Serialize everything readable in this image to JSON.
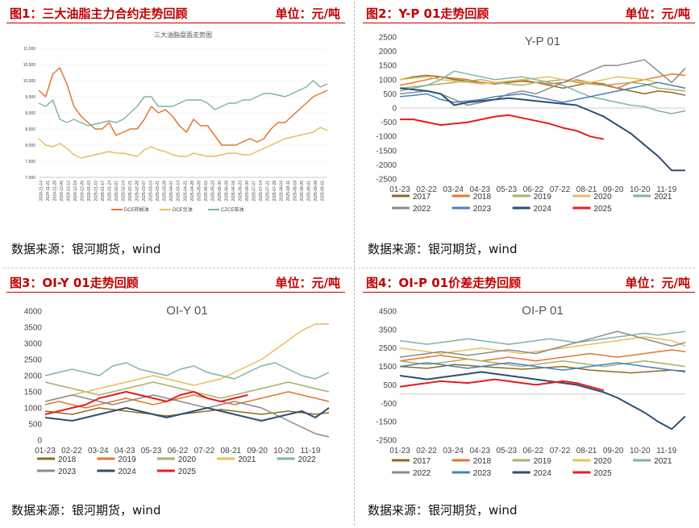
{
  "panels": [
    {
      "header": "图1：三大油脂主力合约走势回顾",
      "unit": "单位：元/吨",
      "source": "数据来源：银河期货，wind"
    },
    {
      "header": "图2：Y-P 01走势回顾",
      "unit": "单位：元/吨",
      "source": "数据来源：银河期货，wind"
    },
    {
      "header": "图3：OI-Y 01走势回顾",
      "unit": "单位：元/吨",
      "source": "数据来源：银河期货，wind"
    },
    {
      "header": "图4：OI-P 01价差走势回顾",
      "unit": "单位：元/吨",
      "source": "数据来源：银河期货，wind"
    }
  ],
  "chart_data": [
    {
      "type": "line",
      "title": "三大油脂盘面走势图",
      "ylim": [
        7000,
        11000
      ],
      "yticks": [
        7000,
        7500,
        8000,
        8500,
        9000,
        9500,
        10000,
        10500,
        11000
      ],
      "xticks": [
        "2024-11-14",
        "2024-11-21",
        "2024-11-28",
        "2024-12-05",
        "2024-12-12",
        "2024-12-19",
        "2024-12-26",
        "2025-01-03",
        "2025-01-10",
        "2025-01-17",
        "2025-01-24",
        "2025-02-07",
        "2025-02-14",
        "2025-02-21",
        "2025-02-28",
        "2025-03-07",
        "2025-03-14",
        "2025-03-21",
        "2025-03-28",
        "2025-04-07",
        "2025-04-14",
        "2025-04-21",
        "2025-04-28",
        "2025-05-09",
        "2025-05-16",
        "2025-05-23",
        "2025-05-30",
        "2025-06-09",
        "2025-06-16",
        "2025-06-23",
        "2025-06-30",
        "2025-07-07",
        "2025-07-14",
        "2025-07-21",
        "2025-07-28",
        "2025-08-04",
        "2025-08-11",
        "2025-08-18",
        "2025-08-25",
        "2025-09-01",
        "2025-09-08",
        "2025-09-15"
      ],
      "legend_position": "bottom",
      "series": [
        {
          "name": "DCE棕榈油",
          "color": "#e3762f",
          "values": [
            9700,
            9500,
            10200,
            10400,
            9900,
            9200,
            8900,
            8700,
            8500,
            8500,
            8700,
            8300,
            8400,
            8500,
            8500,
            8800,
            9200,
            9000,
            9100,
            8900,
            8600,
            8400,
            8800,
            8600,
            8600,
            8300,
            8000,
            8000,
            8000,
            8100,
            8200,
            8100,
            8200,
            8500,
            8700,
            8700,
            8900,
            9100,
            9300,
            9500,
            9600,
            9700
          ]
        },
        {
          "name": "DCE豆油",
          "color": "#e6bf5c",
          "values": [
            8200,
            8000,
            7950,
            8050,
            7900,
            7700,
            7600,
            7650,
            7700,
            7750,
            7800,
            7750,
            7750,
            7700,
            7650,
            7850,
            7950,
            7850,
            7800,
            7700,
            7650,
            7650,
            7750,
            7700,
            7650,
            7650,
            7700,
            7750,
            7750,
            7700,
            7700,
            7800,
            7900,
            8000,
            8100,
            8200,
            8250,
            8300,
            8350,
            8400,
            8550,
            8450
          ]
        },
        {
          "name": "CZCE菜油",
          "color": "#7eb4a7",
          "values": [
            9300,
            9200,
            9400,
            8800,
            8700,
            8800,
            8700,
            8600,
            8650,
            8700,
            8750,
            8700,
            8800,
            9000,
            9200,
            9500,
            9500,
            9200,
            9200,
            9200,
            9300,
            9400,
            9400,
            9400,
            9300,
            9100,
            9200,
            9300,
            9300,
            9400,
            9400,
            9500,
            9600,
            9600,
            9550,
            9500,
            9600,
            9700,
            9800,
            10000,
            9800,
            9900
          ]
        }
      ]
    },
    {
      "type": "line",
      "title": "Y-P 01",
      "ylim": [
        -2500,
        2500
      ],
      "yticks": [
        -2500,
        -2000,
        -1500,
        -1000,
        -500,
        0,
        500,
        1000,
        1500,
        2000,
        2500
      ],
      "xticks": [
        "01-23",
        "02-22",
        "03-24",
        "04-23",
        "05-23",
        "06-22",
        "07-22",
        "08-21",
        "09-20",
        "10-20",
        "11-19"
      ],
      "legend_position": "bottom",
      "series": [
        {
          "name": "2017",
          "color": "#8b6d22",
          "values": [
            1000,
            1100,
            1150,
            1100,
            1000,
            950,
            900,
            850,
            900,
            950,
            900,
            800,
            700,
            800,
            900,
            850,
            700,
            600,
            500,
            600,
            550,
            450
          ]
        },
        {
          "name": "2018",
          "color": "#e3762f",
          "values": [
            800,
            900,
            1000,
            1100,
            1050,
            1000,
            900,
            850,
            950,
            1000,
            900,
            850,
            900,
            1000,
            900,
            800,
            700,
            900,
            1000,
            1100,
            1200,
            1150
          ]
        },
        {
          "name": "2019",
          "color": "#a9b06a",
          "values": [
            700,
            750,
            800,
            850,
            900,
            950,
            1000,
            900,
            850,
            800,
            900,
            950,
            1000,
            900,
            850,
            800,
            850,
            900,
            850,
            700,
            650,
            600
          ]
        },
        {
          "name": "2020",
          "color": "#e6bf5c",
          "values": [
            1000,
            1050,
            1100,
            1000,
            950,
            900,
            850,
            900,
            950,
            1000,
            1050,
            1100,
            1000,
            950,
            900,
            1000,
            1100,
            1050,
            1000,
            900,
            800,
            700
          ]
        },
        {
          "name": "2021",
          "color": "#7eb4a7",
          "values": [
            600,
            700,
            800,
            1000,
            1300,
            1200,
            1100,
            1000,
            1050,
            1100,
            1000,
            900,
            800,
            600,
            400,
            300,
            200,
            100,
            50,
            -100,
            -200,
            -100
          ]
        },
        {
          "name": "2022",
          "color": "#8e8a89",
          "values": [
            500,
            550,
            600,
            500,
            300,
            100,
            200,
            300,
            500,
            600,
            500,
            700,
            900,
            1100,
            1300,
            1500,
            1500,
            1600,
            1700,
            1300,
            900,
            1400
          ]
        },
        {
          "name": "2023",
          "color": "#4a80c0",
          "values": [
            400,
            450,
            500,
            300,
            200,
            250,
            300,
            400,
            450,
            500,
            400,
            300,
            200,
            300,
            400,
            500,
            600,
            700,
            800,
            900,
            800,
            700
          ]
        },
        {
          "name": "2024",
          "color": "#2f4f6f",
          "values": [
            700,
            650,
            600,
            500,
            100,
            200,
            250,
            300,
            350,
            300,
            250,
            200,
            150,
            100,
            -100,
            -300,
            -600,
            -900,
            -1300,
            -1700,
            -2200,
            -2200
          ]
        },
        {
          "name": "2025",
          "color": "#e81c1c",
          "values": [
            -400,
            -400,
            -500,
            -600,
            -550,
            -500,
            -400,
            -300,
            -250,
            -350,
            -450,
            -550,
            -700,
            -800,
            -1000,
            -1100
          ]
        }
      ]
    },
    {
      "type": "line",
      "title": "OI-Y 01",
      "ylim": [
        0,
        4000
      ],
      "yticks": [
        0,
        500,
        1000,
        1500,
        2000,
        2500,
        3000,
        3500,
        4000
      ],
      "xticks": [
        "01-23",
        "02-22",
        "03-24",
        "04-23",
        "05-23",
        "06-22",
        "07-22",
        "08-21",
        "09-20",
        "10-20",
        "11-19"
      ],
      "legend_position": "bottom",
      "series": [
        {
          "name": "2018",
          "color": "#8b6d22",
          "values": [
            900,
            850,
            800,
            900,
            1000,
            950,
            900,
            850,
            800,
            750,
            800,
            850,
            900,
            950,
            900,
            850,
            800,
            850,
            900,
            850,
            800,
            850
          ]
        },
        {
          "name": "2019",
          "color": "#e3762f",
          "values": [
            1100,
            1200,
            1100,
            1000,
            1100,
            1200,
            1300,
            1200,
            1100,
            1200,
            1300,
            1400,
            1300,
            1200,
            1100,
            1200,
            1300,
            1400,
            1500,
            1400,
            1300,
            1200
          ]
        },
        {
          "name": "2020",
          "color": "#a9b06a",
          "values": [
            1800,
            1700,
            1600,
            1500,
            1400,
            1500,
            1600,
            1700,
            1800,
            1700,
            1600,
            1500,
            1400,
            1300,
            1400,
            1500,
            1600,
            1700,
            1800,
            1700,
            1600,
            1500
          ]
        },
        {
          "name": "2021",
          "color": "#e6bf5c",
          "values": [
            1200,
            1300,
            1400,
            1500,
            1600,
            1700,
            1800,
            1900,
            2000,
            1900,
            1800,
            1700,
            1800,
            1900,
            2100,
            2300,
            2500,
            2800,
            3100,
            3400,
            3600,
            3600
          ]
        },
        {
          "name": "2022",
          "color": "#7eb4a7",
          "values": [
            2000,
            2100,
            2200,
            2100,
            2000,
            2300,
            2400,
            2200,
            2100,
            2000,
            2200,
            2300,
            2100,
            2000,
            1900,
            2100,
            2300,
            2400,
            2200,
            2000,
            1900,
            2100
          ]
        },
        {
          "name": "2023",
          "color": "#8e8a89",
          "values": [
            1200,
            1300,
            1400,
            1300,
            1200,
            1100,
            1200,
            1300,
            1400,
            1300,
            1200,
            1100,
            1000,
            1100,
            1200,
            1100,
            1000,
            800,
            600,
            400,
            200,
            100
          ]
        },
        {
          "name": "2024",
          "color": "#2f4f6f",
          "values": [
            700,
            650,
            600,
            700,
            800,
            900,
            1000,
            900,
            800,
            700,
            800,
            900,
            1000,
            900,
            800,
            700,
            600,
            700,
            800,
            900,
            700,
            1000
          ]
        },
        {
          "name": "2025",
          "color": "#e81c1c",
          "values": [
            800,
            900,
            1000,
            1100,
            1300,
            1400,
            1500,
            1400,
            1300,
            1200,
            1400,
            1500,
            1300,
            1200,
            1300,
            1400
          ]
        }
      ]
    },
    {
      "type": "line",
      "title": "OI-P 01",
      "ylim": [
        -2500,
        4500
      ],
      "yticks": [
        -2500,
        -1500,
        -500,
        500,
        1500,
        2500,
        3500,
        4500
      ],
      "xticks": [
        "01-23",
        "02-22",
        "03-24",
        "04-23",
        "05-23",
        "06-22",
        "07-22",
        "08-21",
        "09-20",
        "10-20",
        "11-19"
      ],
      "legend_position": "bottom",
      "series": [
        {
          "name": "2017",
          "color": "#8b6d22",
          "values": [
            1500,
            1450,
            1400,
            1500,
            1600,
            1550,
            1500,
            1450,
            1400,
            1350,
            1400,
            1450,
            1500,
            1400,
            1300,
            1250,
            1200,
            1150,
            1200,
            1250,
            1300,
            1250
          ]
        },
        {
          "name": "2018",
          "color": "#e3762f",
          "values": [
            1800,
            1900,
            2000,
            2100,
            2000,
            1900,
            1800,
            1900,
            2000,
            1900,
            1800,
            1900,
            2000,
            2100,
            2200,
            2100,
            2000,
            2100,
            2200,
            2300,
            2400,
            2300
          ]
        },
        {
          "name": "2019",
          "color": "#a9b06a",
          "values": [
            1800,
            1700,
            1600,
            1700,
            1800,
            1900,
            1800,
            1700,
            1600,
            1500,
            1600,
            1700,
            1800,
            1700,
            1600,
            1500,
            1600,
            1700,
            1800,
            1700,
            1600,
            1500
          ]
        },
        {
          "name": "2020",
          "color": "#e6bf5c",
          "values": [
            2500,
            2400,
            2300,
            2200,
            2300,
            2400,
            2500,
            2400,
            2300,
            2200,
            2300,
            2400,
            2500,
            2600,
            2700,
            2800,
            2900,
            3000,
            3100,
            3000,
            2900,
            2600
          ]
        },
        {
          "name": "2021",
          "color": "#7eb4a7",
          "values": [
            2900,
            2800,
            2700,
            2800,
            2900,
            3000,
            2900,
            2800,
            2700,
            2800,
            2900,
            3000,
            2900,
            2800,
            2900,
            3000,
            3100,
            3200,
            3300,
            3200,
            3300,
            3400
          ]
        },
        {
          "name": "2022",
          "color": "#8e8a89",
          "values": [
            2000,
            2100,
            2200,
            2300,
            2200,
            2100,
            2200,
            2300,
            2400,
            2300,
            2200,
            2400,
            2600,
            2800,
            3000,
            3200,
            3400,
            3200,
            3000,
            2800,
            2600,
            2800
          ]
        },
        {
          "name": "2023",
          "color": "#4a80c0",
          "values": [
            1500,
            1600,
            1700,
            1600,
            1500,
            1400,
            1500,
            1600,
            1700,
            1600,
            1500,
            1400,
            1300,
            1400,
            1500,
            1600,
            1700,
            1600,
            1500,
            1400,
            1300,
            1200
          ]
        },
        {
          "name": "2024",
          "color": "#2f4f6f",
          "values": [
            1000,
            900,
            800,
            900,
            1000,
            1100,
            1200,
            1100,
            1000,
            900,
            800,
            700,
            600,
            500,
            300,
            100,
            -200,
            -600,
            -1000,
            -1500,
            -1900,
            -1200
          ]
        },
        {
          "name": "2025",
          "color": "#e81c1c",
          "values": [
            400,
            500,
            600,
            700,
            650,
            600,
            700,
            800,
            700,
            600,
            500,
            600,
            700,
            600,
            400,
            200
          ]
        }
      ]
    }
  ]
}
